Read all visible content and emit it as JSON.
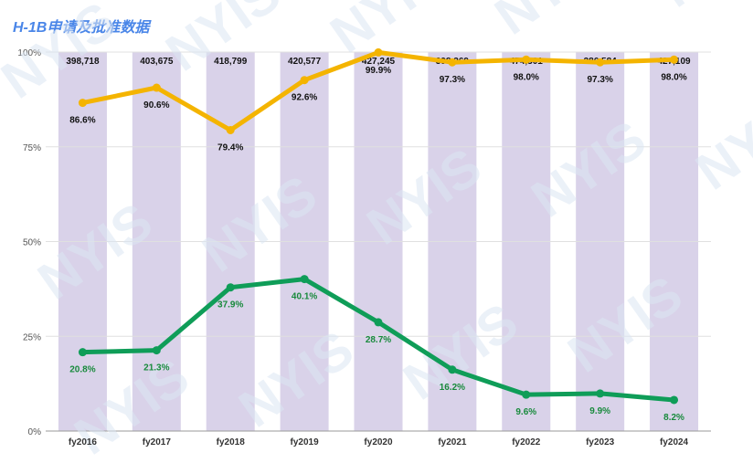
{
  "chart_data": {
    "type": "bar+line",
    "title": "H-1B申请及批准数据",
    "categories": [
      "fy2016",
      "fy2017",
      "fy2018",
      "fy2019",
      "fy2020",
      "fy2021",
      "fy2022",
      "fy2023",
      "fy2024"
    ],
    "y_ticks": [
      "100%",
      "75%",
      "50%",
      "25%",
      "0%"
    ],
    "ylim": [
      0,
      100
    ],
    "applications_labels": [
      "398,718",
      "403,675",
      "418,799",
      "420,577",
      "427,245",
      "398,269",
      "474,301",
      "386,584",
      "427,109"
    ],
    "series": [
      {
        "name": "approval_rate",
        "color": "#f4b400",
        "values": [
          86.6,
          90.6,
          79.4,
          92.6,
          99.9,
          97.3,
          98.0,
          97.3,
          98.0
        ],
        "labels": [
          "86.6%",
          "90.6%",
          "79.4%",
          "92.6%",
          "99.9%",
          "97.3%",
          "98.0%",
          "97.3%",
          "98.0%"
        ]
      },
      {
        "name": "second_rate",
        "color": "#0f9d58",
        "values": [
          20.8,
          21.3,
          37.9,
          40.1,
          28.7,
          16.2,
          9.6,
          9.9,
          8.2
        ],
        "labels": [
          "20.8%",
          "21.3%",
          "37.9%",
          "40.1%",
          "28.7%",
          "16.2%",
          "9.6%",
          "9.9%",
          "8.2%"
        ]
      }
    ],
    "bar_color": "#d9d2e9",
    "watermark": "NYIS",
    "grid": true
  }
}
